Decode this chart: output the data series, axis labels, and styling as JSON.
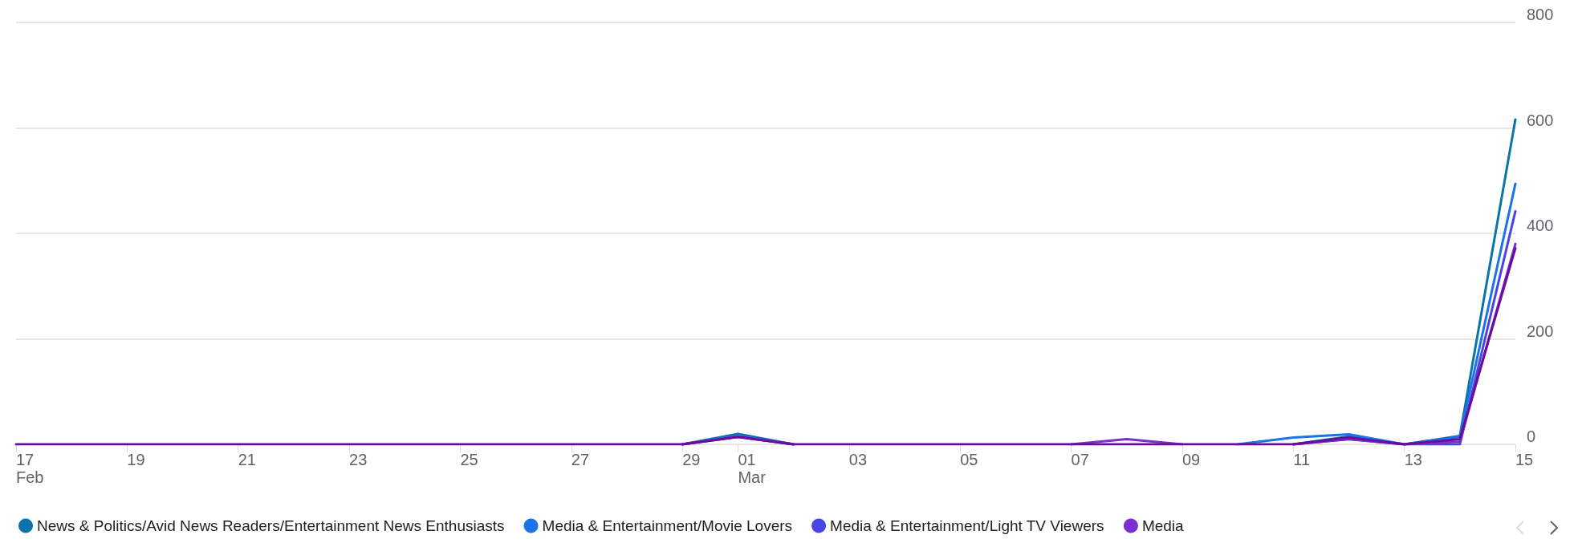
{
  "chart_data": {
    "type": "line",
    "categories": [
      "17\nFeb",
      null,
      "19",
      null,
      "21",
      null,
      "23",
      null,
      "25",
      null,
      "27",
      null,
      "29",
      "01\nMar",
      null,
      "03",
      null,
      "05",
      null,
      "07",
      null,
      "09",
      null,
      "11",
      null,
      "13",
      null,
      "15"
    ],
    "series": [
      {
        "name": "News & Politics/Avid News Readers/Entertainment News Enthusiasts",
        "color": "#0b73ab",
        "values": [
          null,
          null,
          null,
          null,
          null,
          null,
          null,
          null,
          null,
          null,
          null,
          null,
          0,
          20,
          0,
          null,
          null,
          null,
          null,
          null,
          null,
          null,
          null,
          0,
          15,
          0,
          16,
          616
        ]
      },
      {
        "name": "Media & Entertainment/Movie Lovers",
        "color": "#1a73e8",
        "values": [
          null,
          null,
          null,
          null,
          null,
          null,
          null,
          null,
          null,
          null,
          null,
          null,
          0,
          16,
          0,
          null,
          null,
          null,
          null,
          null,
          null,
          null,
          0,
          13,
          19,
          0,
          14,
          494
        ]
      },
      {
        "name": "Media & Entertainment/Light TV Viewers",
        "color": "#4a44e6",
        "values": [
          null,
          null,
          null,
          null,
          null,
          null,
          null,
          null,
          null,
          null,
          null,
          null,
          0,
          15,
          0,
          null,
          null,
          null,
          null,
          null,
          null,
          null,
          null,
          0,
          10,
          0,
          0,
          442
        ]
      },
      {
        "name": "Media",
        "color": "#7b2fd0",
        "values": [
          null,
          null,
          null,
          null,
          null,
          null,
          null,
          null,
          null,
          null,
          null,
          null,
          0,
          14,
          0,
          null,
          null,
          null,
          null,
          0,
          10,
          0,
          null,
          0,
          10,
          0,
          5,
          380
        ]
      },
      {
        "color": "#6a0d9c",
        "values": [
          0,
          0,
          0,
          0,
          0,
          0,
          0,
          0,
          0,
          0,
          0,
          0,
          0,
          14,
          0,
          0,
          0,
          0,
          0,
          0,
          0,
          0,
          0,
          0,
          13,
          0,
          10,
          372
        ]
      }
    ],
    "ylim": [
      0,
      800
    ],
    "yticks": [
      0,
      200,
      400,
      600,
      800
    ],
    "grid": "y",
    "legend": "bottom",
    "marker": "none",
    "line_style": "solid"
  }
}
